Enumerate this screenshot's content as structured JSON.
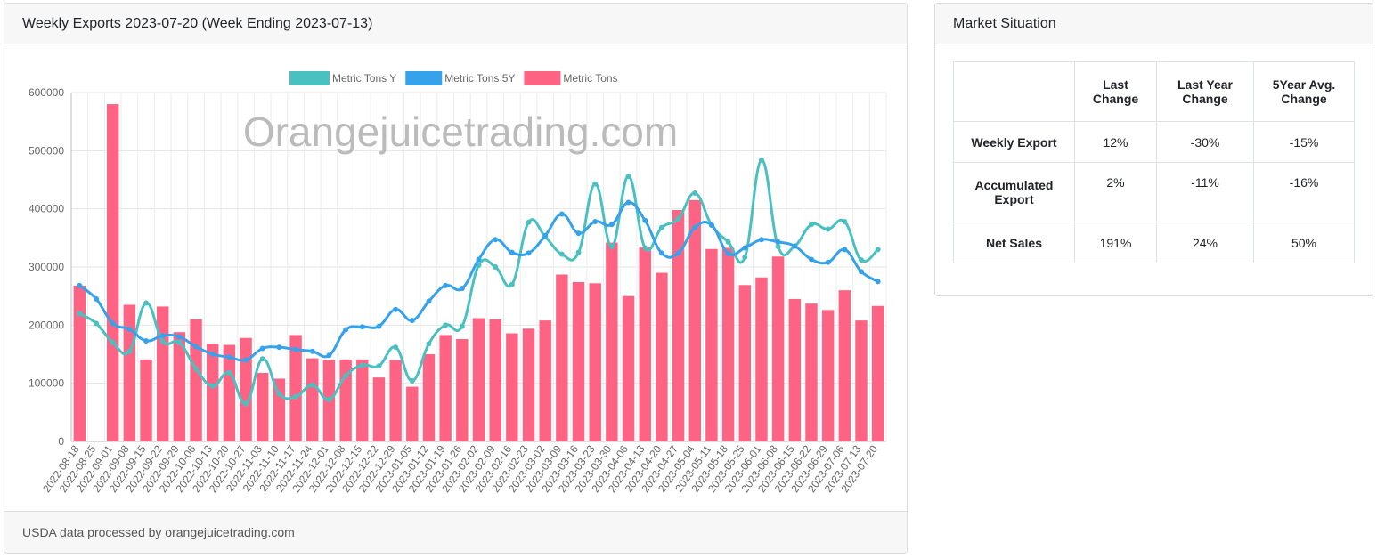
{
  "chart_card": {
    "title": "Weekly Exports 2023-07-20 (Week Ending 2023-07-13)",
    "footer": "USDA data processed by orangejuicetrading.com",
    "watermark": "Orangejuicetrading.com"
  },
  "market": {
    "title": "Market Situation",
    "headers": [
      "",
      "Last Change",
      "Last Year Change",
      "5Year Avg. Change"
    ],
    "rows": [
      {
        "label": "Weekly Export",
        "values": [
          "12%",
          "-30%",
          "-15%"
        ]
      },
      {
        "label": "Accumulated Export",
        "values": [
          "2%",
          "-11%",
          "-16%"
        ]
      },
      {
        "label": "Net Sales",
        "values": [
          "191%",
          "24%",
          "50%"
        ]
      }
    ]
  },
  "chart_data": {
    "type": "bar",
    "ylim": [
      0,
      600000
    ],
    "yticks": [
      0,
      100000,
      200000,
      300000,
      400000,
      500000,
      600000
    ],
    "grid": true,
    "legend_position": "top",
    "categories": [
      "2022-08-18",
      "2022-08-25",
      "2022-09-01",
      "2022-09-08",
      "2022-09-15",
      "2022-09-22",
      "2022-09-29",
      "2022-10-06",
      "2022-10-13",
      "2022-10-20",
      "2022-10-27",
      "2022-11-03",
      "2022-11-10",
      "2022-11-17",
      "2022-11-24",
      "2022-12-01",
      "2022-12-08",
      "2022-12-15",
      "2022-12-22",
      "2022-12-29",
      "2023-01-05",
      "2023-01-12",
      "2023-01-19",
      "2023-01-26",
      "2023-02-02",
      "2023-02-09",
      "2023-02-16",
      "2023-02-23",
      "2023-03-02",
      "2023-03-09",
      "2023-03-16",
      "2023-03-23",
      "2023-03-30",
      "2023-04-06",
      "2023-04-13",
      "2023-04-20",
      "2023-04-27",
      "2023-05-04",
      "2023-05-11",
      "2023-05-18",
      "2023-05-25",
      "2023-06-01",
      "2023-06-08",
      "2023-06-15",
      "2023-06-22",
      "2023-06-29",
      "2023-07-06",
      "2023-07-13",
      "2023-07-20"
    ],
    "series": [
      {
        "name": "Metric Tons Y",
        "type": "line",
        "color": "#4bc0c0",
        "values": [
          220000,
          203000,
          170000,
          155000,
          238000,
          172000,
          170000,
          125000,
          95000,
          118000,
          65000,
          142000,
          82000,
          77000,
          97000,
          72000,
          113000,
          131000,
          130000,
          162000,
          104000,
          168000,
          200000,
          198000,
          303000,
          300000,
          270000,
          377000,
          352000,
          322000,
          325000,
          443000,
          335000,
          456000,
          333000,
          368000,
          383000,
          427000,
          372000,
          343000,
          317000,
          484000,
          335000,
          336000,
          373000,
          365000,
          378000,
          312000,
          330000
        ]
      },
      {
        "name": "Metric Tons 5Y",
        "type": "line",
        "color": "#36a2eb",
        "values": [
          268000,
          245000,
          203000,
          193000,
          173000,
          182000,
          180000,
          163000,
          150000,
          145000,
          140000,
          160000,
          162000,
          158000,
          155000,
          148000,
          192000,
          197000,
          198000,
          227000,
          208000,
          241000,
          268000,
          263000,
          313000,
          347000,
          325000,
          324000,
          354000,
          391000,
          358000,
          378000,
          373000,
          411000,
          380000,
          324000,
          324000,
          368000,
          372000,
          323000,
          333000,
          347000,
          343000,
          336000,
          313000,
          308000,
          330000,
          292000,
          275000
        ]
      },
      {
        "name": "Metric Tons",
        "type": "bar",
        "color": "#ff6384",
        "values": [
          268000,
          0,
          580000,
          235000,
          141000,
          232000,
          188000,
          210000,
          168000,
          166000,
          178000,
          118000,
          108000,
          183000,
          143000,
          140000,
          141000,
          141000,
          110000,
          140000,
          94000,
          150000,
          183000,
          176000,
          212000,
          210000,
          186000,
          194000,
          208000,
          287000,
          274000,
          272000,
          342000,
          250000,
          335000,
          290000,
          398000,
          415000,
          331000,
          333000,
          269000,
          282000,
          318000,
          245000,
          237000,
          226000,
          260000,
          208000,
          233000
        ]
      }
    ]
  }
}
